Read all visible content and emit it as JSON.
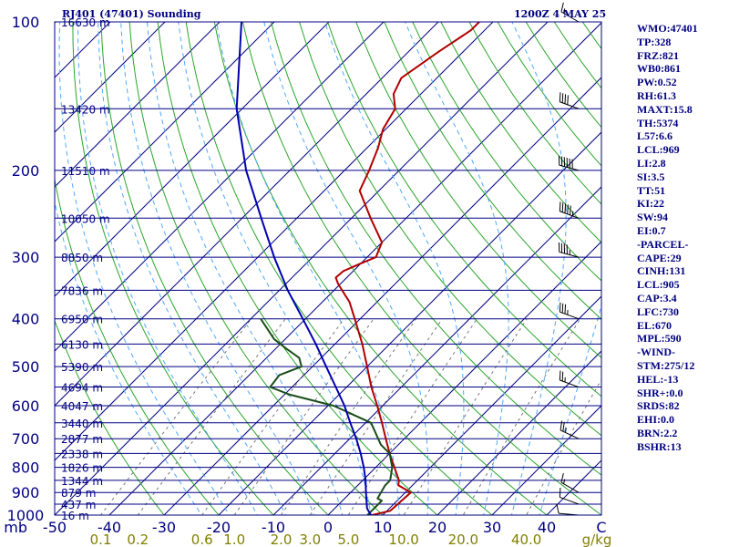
{
  "header": {
    "station": "RJ401 (47401) Sounding",
    "time": "1200Z  4 MAY 25"
  },
  "stats": [
    "WMO:47401",
    "TP:328",
    "FRZ:821",
    "WB0:861",
    "PW:0.52",
    "RH:61.3",
    "MAXT:15.8",
    "TH:5374",
    "L57:6.6",
    "LCL:969",
    "LI:2.8",
    "SI:3.5",
    "TT:51",
    "KI:22",
    "SW:94",
    "EI:0.7",
    "-PARCEL-",
    "CAPE:29",
    "CINH:131",
    "LCL:905",
    "CAP:3.4",
    "LFC:730",
    "EL:670",
    "MPL:590",
    "-WIND-",
    "STM:275/12",
    "HEL:-13",
    "SHR+:0.0",
    "SRDS:82",
    "EHI:0.0",
    "BRN:2.2",
    "BSHR:13"
  ],
  "colors": {
    "isobar": "#000080",
    "isotherm": "#000080",
    "dry_adiabat": "#2aa52a",
    "moist_adiabat": "#4fa8ff",
    "mixing_ratio": "#777777",
    "temperature": "#b00000",
    "dewpoint": "#1a4d1a",
    "parcel": "#0000b0",
    "frame": "#000080",
    "mixing_label": "#808000"
  },
  "chart_data": {
    "type": "line",
    "title": "RJ401 (47401) Sounding",
    "subtitle": "1200Z  4 MAY 25",
    "xlabel": "C",
    "ylabel": "mb",
    "xlim": [
      -50,
      50
    ],
    "ylim": [
      1000,
      100
    ],
    "y_scale": "log",
    "grid": true,
    "pressure_ticks": [
      "100",
      "200",
      "300",
      "400",
      "500",
      "600",
      "700",
      "800",
      "900",
      "1000"
    ],
    "temperature_ticks": [
      "-50",
      "-40",
      "-30",
      "-20",
      "-10",
      "0",
      "10",
      "20",
      "30",
      "40",
      "C"
    ],
    "mixing_ratio_ticks": [
      "0.1",
      "0.2",
      "0.6",
      "1.0",
      "2.0",
      "3.0",
      "5.0",
      "10.0",
      "20.0",
      "40.0",
      "g/kg"
    ],
    "mixing_ratio_values": [
      0.1,
      0.2,
      0.6,
      1.0,
      2.0,
      3.0,
      5.0,
      10.0,
      20.0,
      40.0
    ],
    "height_labels": [
      {
        "p": 100,
        "label": "16630 m"
      },
      {
        "p": 150,
        "label": "13420 m"
      },
      {
        "p": 200,
        "label": "11510 m"
      },
      {
        "p": 250,
        "label": "10050 m"
      },
      {
        "p": 300,
        "label": "8850 m"
      },
      {
        "p": 350,
        "label": "7836 m"
      },
      {
        "p": 400,
        "label": "6950 m"
      },
      {
        "p": 450,
        "label": "6130 m"
      },
      {
        "p": 500,
        "label": "5390 m"
      },
      {
        "p": 550,
        "label": "4694 m"
      },
      {
        "p": 600,
        "label": "4047 m"
      },
      {
        "p": 650,
        "label": "3440 m"
      },
      {
        "p": 700,
        "label": "2877 m"
      },
      {
        "p": 750,
        "label": "2338 m"
      },
      {
        "p": 800,
        "label": "1826 m"
      },
      {
        "p": 850,
        "label": "1344 m"
      },
      {
        "p": 900,
        "label": "879 m"
      },
      {
        "p": 950,
        "label": "437 m"
      },
      {
        "p": 1000,
        "label": "16 m"
      }
    ],
    "series": [
      {
        "name": "Temperature",
        "points": [
          [
            1001,
            7.9
          ],
          [
            980,
            10.6
          ],
          [
            900,
            11.0
          ],
          [
            870,
            7.4
          ],
          [
            850,
            6.6
          ],
          [
            800,
            3.4
          ],
          [
            750,
            0.0
          ],
          [
            700,
            -3.4
          ],
          [
            650,
            -7.0
          ],
          [
            600,
            -11.0
          ],
          [
            550,
            -15.5
          ],
          [
            500,
            -20.0
          ],
          [
            450,
            -25.0
          ],
          [
            400,
            -31.0
          ],
          [
            370,
            -35.0
          ],
          [
            340,
            -40.4
          ],
          [
            330,
            -42.0
          ],
          [
            320,
            -41.8
          ],
          [
            310,
            -40.2
          ],
          [
            300,
            -38.4
          ],
          [
            280,
            -40.0
          ],
          [
            250,
            -46.5
          ],
          [
            220,
            -53.5
          ],
          [
            200,
            -55.5
          ],
          [
            180,
            -58.0
          ],
          [
            165,
            -60.5
          ],
          [
            150,
            -62.0
          ],
          [
            140,
            -65.0
          ],
          [
            130,
            -66.5
          ],
          [
            115,
            -64.5
          ],
          [
            104,
            -62.5
          ],
          [
            100,
            -62.5
          ]
        ]
      },
      {
        "name": "Dewpoint",
        "points": [
          [
            1001,
            7.2
          ],
          [
            935,
            7.2
          ],
          [
            925,
            6.0
          ],
          [
            870,
            5.0
          ],
          [
            850,
            5.0
          ],
          [
            800,
            3.0
          ],
          [
            750,
            0.0
          ],
          [
            720,
            -3.2
          ],
          [
            700,
            -4.8
          ],
          [
            650,
            -9.0
          ],
          [
            600,
            -19.0
          ],
          [
            570,
            -29.0
          ],
          [
            550,
            -34.0
          ],
          [
            520,
            -34.5
          ],
          [
            500,
            -32.0
          ],
          [
            480,
            -34.0
          ],
          [
            460,
            -38.0
          ],
          [
            440,
            -42.0
          ],
          [
            400,
            -48.2
          ]
        ]
      },
      {
        "name": "Parcel",
        "points": [
          [
            1001,
            7.9
          ],
          [
            969,
            5.9
          ],
          [
            900,
            2.8
          ],
          [
            850,
            0.5
          ],
          [
            800,
            -2.2
          ],
          [
            750,
            -5.3
          ],
          [
            700,
            -8.8
          ],
          [
            650,
            -12.8
          ],
          [
            600,
            -17.0
          ],
          [
            550,
            -22.0
          ],
          [
            500,
            -27.5
          ],
          [
            450,
            -33.5
          ],
          [
            400,
            -40.5
          ],
          [
            350,
            -48.5
          ],
          [
            300,
            -57.0
          ],
          [
            250,
            -66.5
          ],
          [
            200,
            -78.0
          ],
          [
            150,
            -91.0
          ],
          [
            100,
            -106.0
          ]
        ]
      }
    ],
    "wind_barbs": [
      {
        "p": 1000,
        "dir": 275,
        "spd": 10
      },
      {
        "p": 950,
        "dir": 290,
        "spd": 10
      },
      {
        "p": 900,
        "dir": 300,
        "spd": 15
      },
      {
        "p": 700,
        "dir": 295,
        "spd": 25
      },
      {
        "p": 550,
        "dir": 290,
        "spd": 25
      },
      {
        "p": 400,
        "dir": 290,
        "spd": 35
      },
      {
        "p": 300,
        "dir": 285,
        "spd": 45
      },
      {
        "p": 250,
        "dir": 290,
        "spd": 55
      },
      {
        "p": 200,
        "dir": 285,
        "spd": 60
      },
      {
        "p": 150,
        "dir": 290,
        "spd": 40
      },
      {
        "p": 100,
        "dir": 300,
        "spd": 15
      }
    ]
  }
}
